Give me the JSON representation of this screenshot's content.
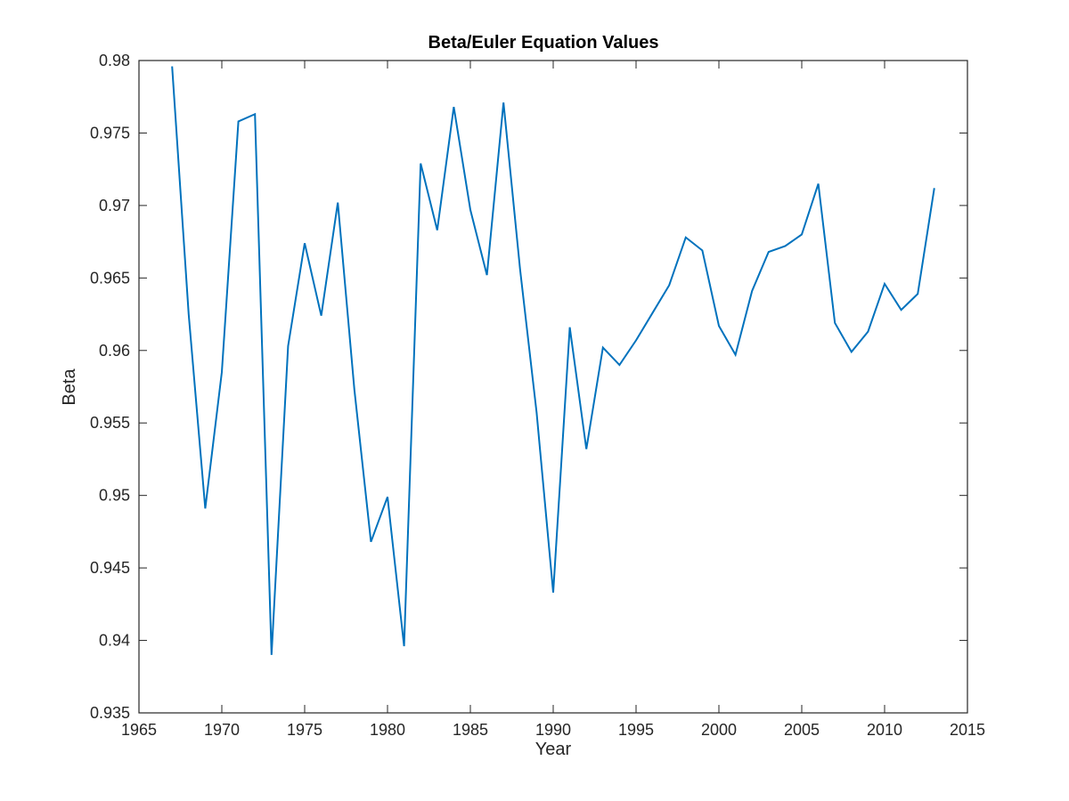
{
  "chart_data": {
    "type": "line",
    "title": "Beta/Euler Equation Values",
    "xlabel": "Year",
    "ylabel": "Beta",
    "xlim": [
      1965,
      2015
    ],
    "ylim": [
      0.935,
      0.98
    ],
    "xticks": [
      "1965",
      "1970",
      "1975",
      "1980",
      "1985",
      "1990",
      "1995",
      "2000",
      "2005",
      "2010",
      "2015"
    ],
    "yticks": [
      "0.935",
      "0.94",
      "0.945",
      "0.95",
      "0.955",
      "0.96",
      "0.965",
      "0.97",
      "0.975",
      "0.98"
    ],
    "grid": false,
    "colors": {
      "line": "#0072bd",
      "axes": "#262626"
    },
    "series": [
      {
        "x": [
          1967,
          1968,
          1969,
          1970,
          1971,
          1972,
          1973,
          1974,
          1975,
          1976,
          1977,
          1978,
          1979,
          1980,
          1981,
          1982,
          1983,
          1984,
          1985,
          1986,
          1987,
          1988,
          1989,
          1990,
          1991,
          1992,
          1993,
          1994,
          1995,
          1996,
          1997,
          1998,
          1999,
          2000,
          2001,
          2002,
          2003,
          2004,
          2005,
          2006,
          2007,
          2008,
          2009,
          2010,
          2011,
          2012,
          2013
        ],
        "values": [
          0.9796,
          0.9625,
          0.9491,
          0.9585,
          0.9758,
          0.9763,
          0.939,
          0.9603,
          0.9674,
          0.9624,
          0.9702,
          0.9573,
          0.9468,
          0.9499,
          0.9396,
          0.9729,
          0.9683,
          0.9768,
          0.9697,
          0.9652,
          0.9771,
          0.9656,
          0.9557,
          0.9433,
          0.9616,
          0.9532,
          0.9602,
          0.959,
          0.9607,
          0.9626,
          0.9645,
          0.9678,
          0.9669,
          0.9617,
          0.9597,
          0.9641,
          0.9668,
          0.9672,
          0.968,
          0.9715,
          0.9619,
          0.9599,
          0.9613,
          0.9646,
          0.9628,
          0.9639,
          0.9712
        ]
      }
    ]
  }
}
